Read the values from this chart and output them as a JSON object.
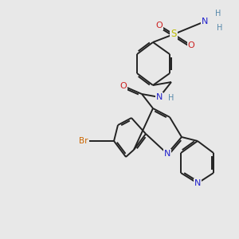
{
  "background_color": "#e8e8e8",
  "bond_color": "#222222",
  "bond_lw": 1.4,
  "atom_colors": {
    "N": "#2222cc",
    "O": "#cc2222",
    "S": "#bbbb00",
    "Br": "#cc6600",
    "H": "#5588aa"
  },
  "bg": "#e8e8e8"
}
